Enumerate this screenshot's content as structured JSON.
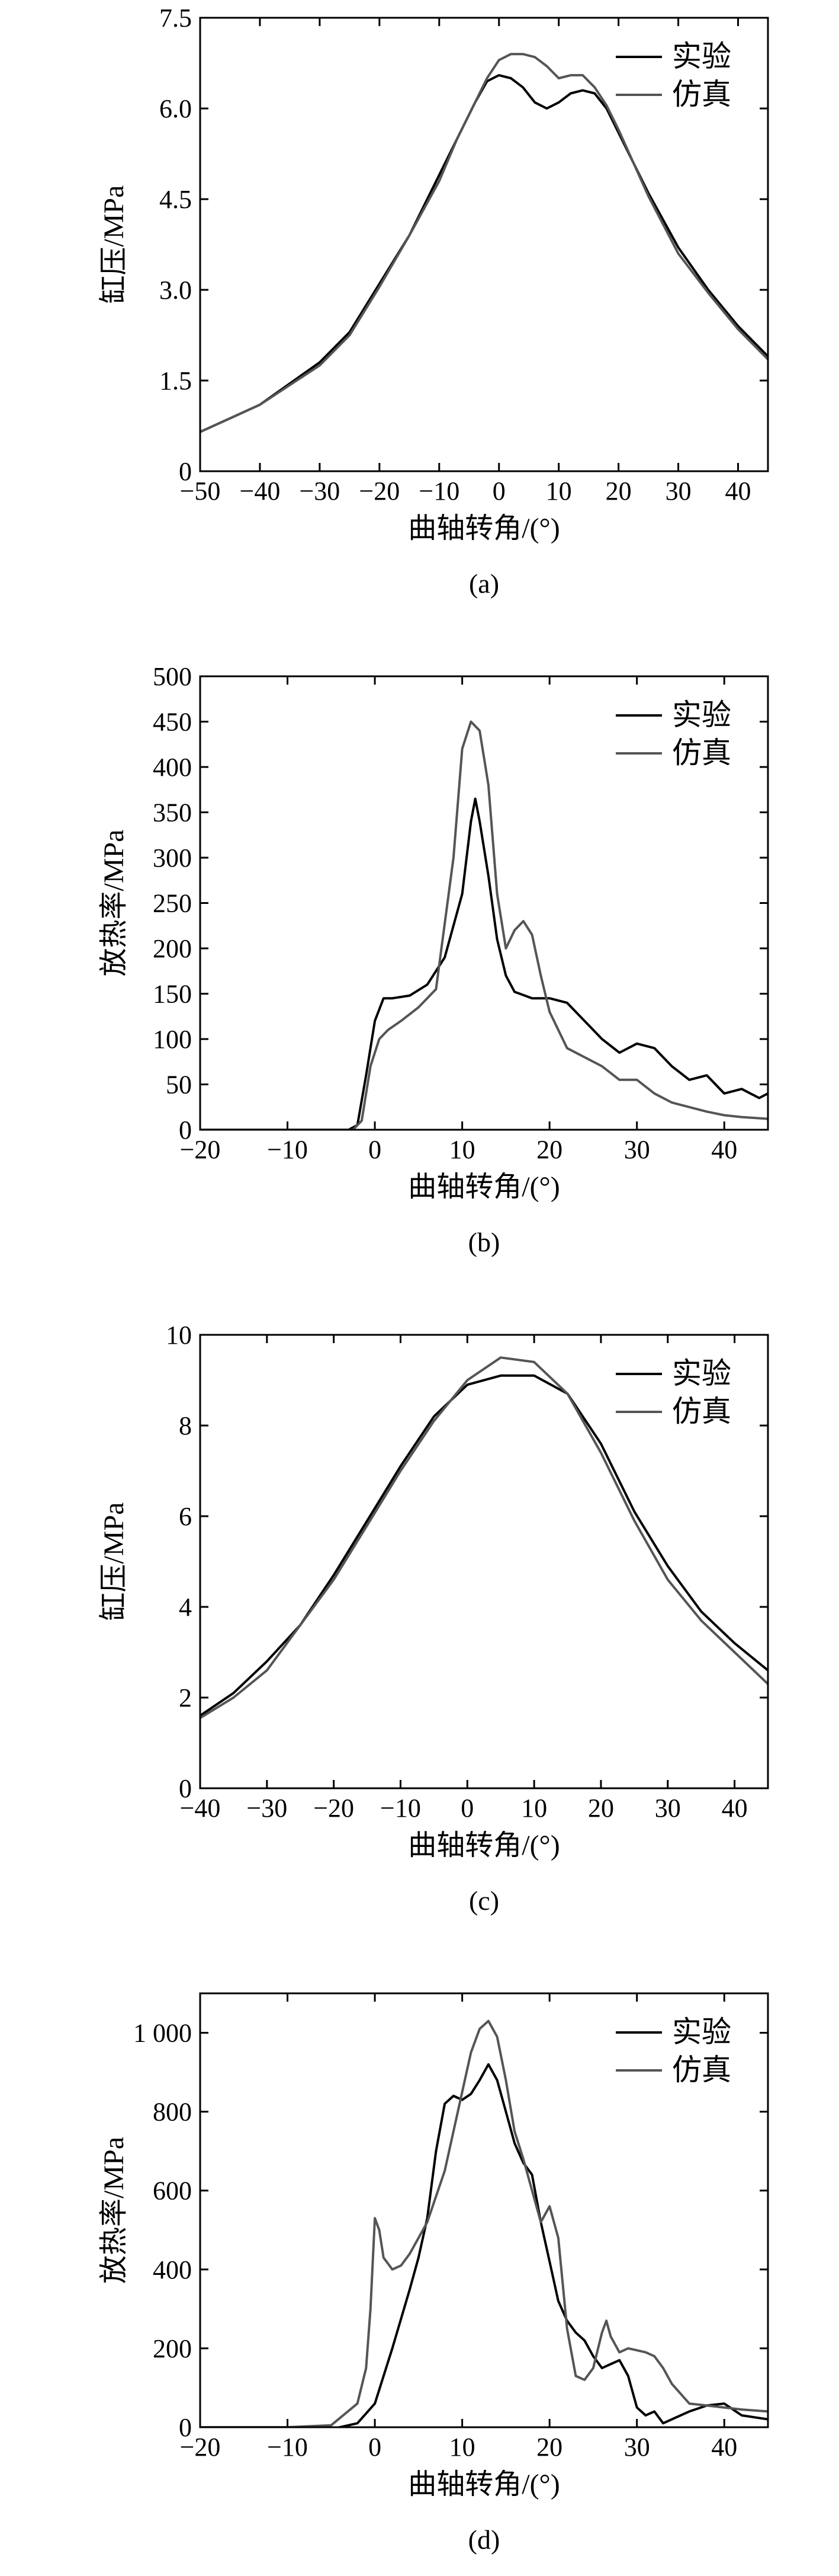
{
  "figure_title": "",
  "chart_data": [
    {
      "type": "line",
      "panel_label": "(a)",
      "xlabel": "曲轴转角/(°)",
      "ylabel": "缸压/MPa",
      "xlim": [
        -50,
        45
      ],
      "ylim": [
        0,
        7.5
      ],
      "xticks": [
        -50,
        -40,
        -30,
        -20,
        -10,
        0,
        10,
        20,
        30,
        40
      ],
      "xtick_labels": [
        "−50",
        "−40",
        "−30",
        "−20",
        "−10",
        "0",
        "10",
        "20",
        "30",
        "40"
      ],
      "yticks": [
        0,
        1.5,
        3.0,
        4.5,
        6.0,
        7.5
      ],
      "ytick_labels": [
        "0",
        "1.5",
        "3.0",
        "4.5",
        "6.0",
        "7.5"
      ],
      "legend_position": "top-right",
      "series": [
        {
          "name": "实验",
          "color": "#000000",
          "x": [
            -50,
            -40,
            -30,
            -25,
            -20,
            -15,
            -10,
            -7,
            -4,
            -2,
            0,
            2,
            4,
            6,
            8,
            10,
            12,
            14,
            16,
            18,
            20,
            25,
            30,
            35,
            40,
            45
          ],
          "y": [
            0.65,
            1.1,
            1.8,
            2.3,
            3.1,
            3.9,
            4.9,
            5.5,
            6.1,
            6.45,
            6.55,
            6.5,
            6.35,
            6.1,
            6.0,
            6.1,
            6.25,
            6.3,
            6.25,
            6.0,
            5.6,
            4.6,
            3.7,
            3.0,
            2.4,
            1.9
          ]
        },
        {
          "name": "仿真",
          "color": "#555555",
          "x": [
            -50,
            -40,
            -30,
            -25,
            -20,
            -15,
            -10,
            -7,
            -4,
            -2,
            0,
            2,
            4,
            6,
            8,
            10,
            12,
            14,
            16,
            18,
            20,
            25,
            30,
            35,
            40,
            45
          ],
          "y": [
            0.65,
            1.1,
            1.75,
            2.25,
            3.05,
            3.9,
            4.8,
            5.5,
            6.1,
            6.5,
            6.8,
            6.9,
            6.9,
            6.85,
            6.7,
            6.5,
            6.55,
            6.55,
            6.35,
            6.05,
            5.65,
            4.55,
            3.6,
            2.95,
            2.35,
            1.85
          ]
        }
      ]
    },
    {
      "type": "line",
      "panel_label": "(b)",
      "xlabel": "曲轴转角/(°)",
      "ylabel": "放热率/MPa",
      "xlim": [
        -20,
        45
      ],
      "ylim": [
        0,
        500
      ],
      "xticks": [
        -20,
        -10,
        0,
        10,
        20,
        30,
        40
      ],
      "xtick_labels": [
        "−20",
        "−10",
        "0",
        "10",
        "20",
        "30",
        "40"
      ],
      "yticks": [
        0,
        50,
        100,
        150,
        200,
        250,
        300,
        350,
        400,
        450,
        500
      ],
      "ytick_labels": [
        "0",
        "50",
        "100",
        "150",
        "200",
        "250",
        "300",
        "350",
        "400",
        "450",
        "500"
      ],
      "legend_position": "top-right",
      "series": [
        {
          "name": "实验",
          "color": "#000000",
          "x": [
            -20,
            -3,
            -2,
            -1,
            0,
            1,
            2,
            4,
            6,
            8,
            10,
            11,
            11.5,
            12,
            13,
            14,
            15,
            16,
            18,
            20,
            22,
            24,
            26,
            28,
            30,
            32,
            34,
            36,
            38,
            40,
            42,
            44,
            45
          ],
          "y": [
            0,
            0,
            5,
            60,
            120,
            145,
            145,
            148,
            160,
            190,
            260,
            340,
            365,
            340,
            280,
            210,
            170,
            152,
            145,
            145,
            140,
            120,
            100,
            85,
            95,
            90,
            70,
            55,
            60,
            40,
            45,
            35,
            40
          ]
        },
        {
          "name": "仿真",
          "color": "#555555",
          "x": [
            -20,
            -2.5,
            -1.5,
            -0.5,
            0.5,
            1.5,
            3,
            5,
            7,
            9,
            10,
            11,
            12,
            13,
            14,
            15,
            16,
            17,
            18,
            19,
            20,
            22,
            24,
            26,
            28,
            30,
            32,
            34,
            36,
            38,
            40,
            42,
            45
          ],
          "y": [
            0,
            0,
            10,
            70,
            100,
            110,
            120,
            135,
            155,
            300,
            420,
            450,
            440,
            380,
            260,
            200,
            220,
            230,
            215,
            170,
            130,
            90,
            80,
            70,
            55,
            55,
            40,
            30,
            25,
            20,
            16,
            14,
            12
          ]
        }
      ]
    },
    {
      "type": "line",
      "panel_label": "(c)",
      "xlabel": "曲轴转角/(°)",
      "ylabel": "缸压/MPa",
      "xlim": [
        -40,
        45
      ],
      "ylim": [
        0,
        10
      ],
      "xticks": [
        -40,
        -30,
        -20,
        -10,
        0,
        10,
        20,
        30,
        40
      ],
      "xtick_labels": [
        "−40",
        "−30",
        "−20",
        "−10",
        "0",
        "10",
        "20",
        "30",
        "40"
      ],
      "yticks": [
        0,
        2,
        4,
        6,
        8,
        10
      ],
      "ytick_labels": [
        "0",
        "2",
        "4",
        "6",
        "8",
        "10"
      ],
      "legend_position": "top-right",
      "series": [
        {
          "name": "实验",
          "color": "#000000",
          "x": [
            -40,
            -35,
            -30,
            -25,
            -20,
            -15,
            -10,
            -5,
            0,
            5,
            10,
            15,
            20,
            25,
            30,
            35,
            40,
            45
          ],
          "y": [
            1.6,
            2.1,
            2.8,
            3.6,
            4.7,
            5.9,
            7.1,
            8.2,
            8.9,
            9.1,
            9.1,
            8.7,
            7.6,
            6.1,
            4.9,
            3.9,
            3.2,
            2.6
          ]
        },
        {
          "name": "仿真",
          "color": "#555555",
          "x": [
            -40,
            -35,
            -30,
            -25,
            -20,
            -15,
            -10,
            -5,
            0,
            5,
            10,
            15,
            20,
            25,
            30,
            35,
            40,
            45
          ],
          "y": [
            1.55,
            2.0,
            2.6,
            3.6,
            4.6,
            5.8,
            7.0,
            8.1,
            9.0,
            9.5,
            9.4,
            8.7,
            7.4,
            5.9,
            4.6,
            3.7,
            3.0,
            2.3
          ]
        }
      ]
    },
    {
      "type": "line",
      "panel_label": "(d)",
      "xlabel": "曲轴转角/(°)",
      "ylabel": "放热率/MPa",
      "xlim": [
        -20,
        45
      ],
      "ylim": [
        0,
        1100
      ],
      "xticks": [
        -20,
        -10,
        0,
        10,
        20,
        30,
        40
      ],
      "xtick_labels": [
        "−20",
        "−10",
        "0",
        "10",
        "20",
        "30",
        "40"
      ],
      "yticks": [
        0,
        200,
        400,
        600,
        800,
        1000
      ],
      "ytick_labels": [
        "0",
        "200",
        "400",
        "600",
        "800",
        "1 000"
      ],
      "legend_position": "top-right",
      "series": [
        {
          "name": "实验",
          "color": "#000000",
          "x": [
            -20,
            -15,
            -10,
            -5,
            -2,
            0,
            2,
            4,
            5,
            6,
            7,
            8,
            9,
            10,
            11,
            12,
            13,
            14,
            15,
            16,
            17,
            18,
            19,
            20,
            21,
            22,
            23,
            24,
            25,
            26,
            27,
            28,
            29,
            30,
            31,
            32,
            33,
            34,
            35,
            36,
            38,
            40,
            42,
            45
          ],
          "y": [
            0,
            0,
            -5,
            -5,
            10,
            60,
            200,
            350,
            430,
            530,
            700,
            820,
            840,
            830,
            845,
            880,
            920,
            880,
            800,
            720,
            670,
            640,
            520,
            420,
            320,
            270,
            240,
            220,
            180,
            150,
            160,
            170,
            130,
            50,
            30,
            40,
            10,
            20,
            30,
            40,
            55,
            60,
            30,
            20
          ]
        },
        {
          "name": "仿真",
          "color": "#555555",
          "x": [
            -20,
            -15,
            -10,
            -5,
            -2,
            -1,
            -0.5,
            0,
            0.5,
            1,
            2,
            3,
            4,
            6,
            8,
            10,
            11,
            12,
            13,
            14,
            15,
            16,
            17,
            18,
            19,
            20,
            21,
            22,
            23,
            24,
            25,
            26,
            26.5,
            27,
            28,
            29,
            30,
            31,
            32,
            33,
            34,
            36,
            38,
            40,
            42,
            45
          ],
          "y": [
            0,
            0,
            0,
            5,
            60,
            150,
            300,
            530,
            500,
            430,
            400,
            410,
            440,
            520,
            650,
            850,
            950,
            1010,
            1030,
            990,
            880,
            750,
            680,
            600,
            520,
            560,
            480,
            250,
            130,
            120,
            150,
            240,
            270,
            230,
            190,
            200,
            195,
            190,
            180,
            150,
            110,
            60,
            55,
            50,
            45,
            40
          ]
        }
      ]
    }
  ]
}
